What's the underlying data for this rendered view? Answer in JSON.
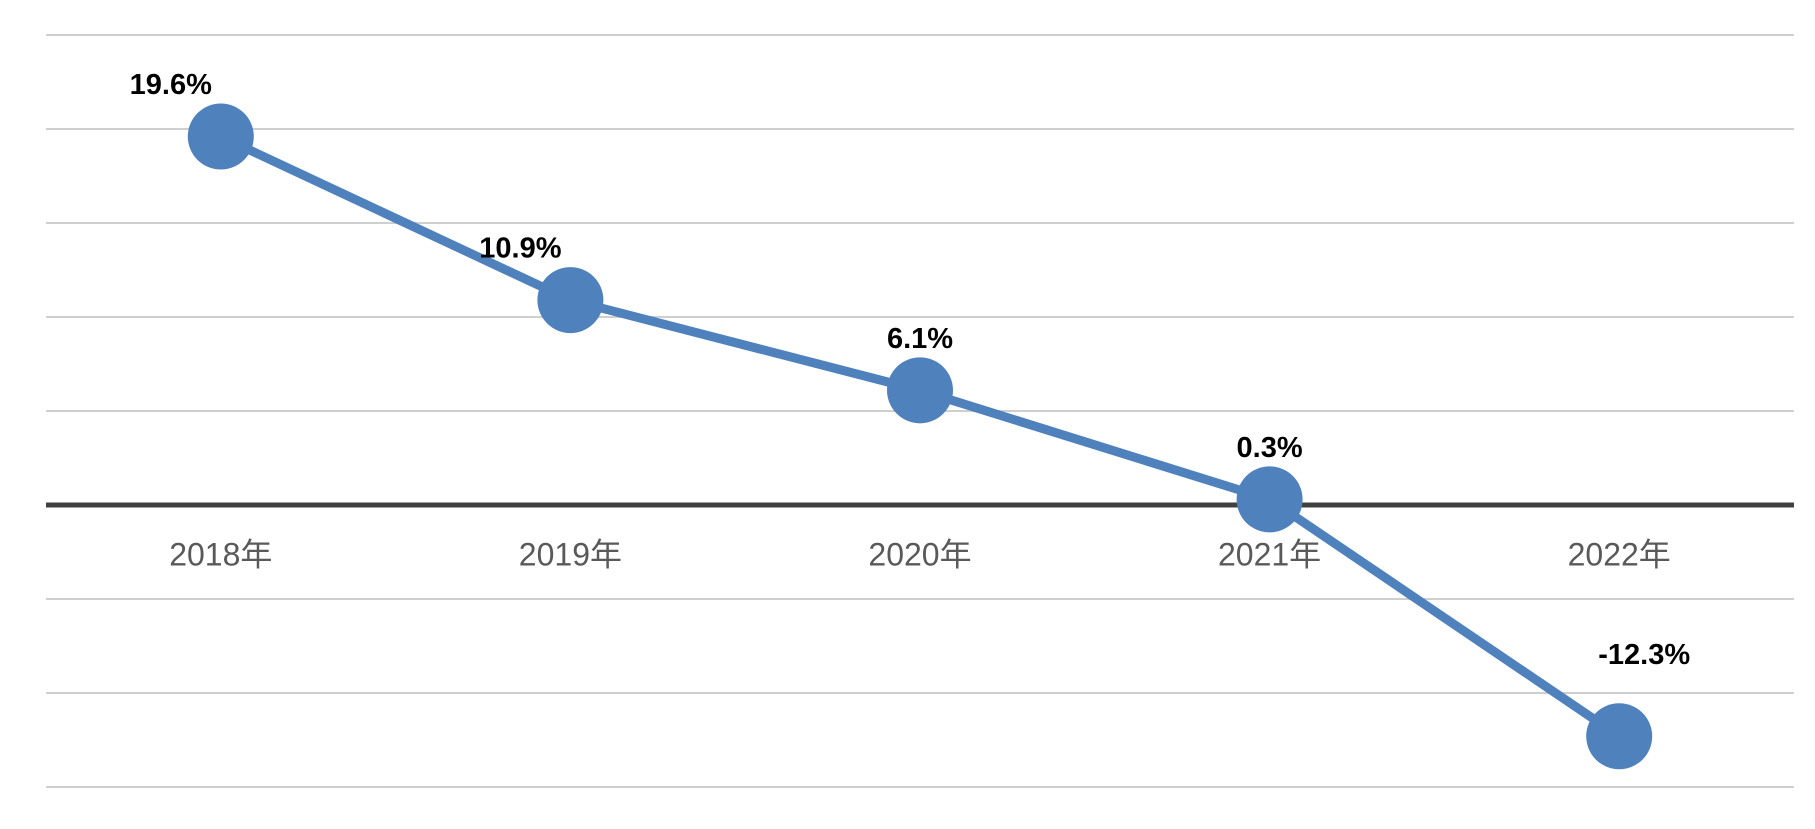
{
  "chart_data": {
    "type": "line",
    "categories": [
      "2018年",
      "2019年",
      "2020年",
      "2021年",
      "2022年"
    ],
    "series": [
      {
        "color": "#4f81bd",
        "values": [
          19.6,
          10.9,
          6.1,
          0.3,
          -12.3
        ],
        "value_labels": [
          "19.6%",
          "10.9%",
          "6.1%",
          "0.3%",
          "-12.3%"
        ]
      }
    ],
    "ylim": [
      -15,
      25
    ],
    "yticks": [
      -15,
      -10,
      -5,
      0,
      5,
      10,
      15,
      20,
      25
    ],
    "grid": true
  }
}
